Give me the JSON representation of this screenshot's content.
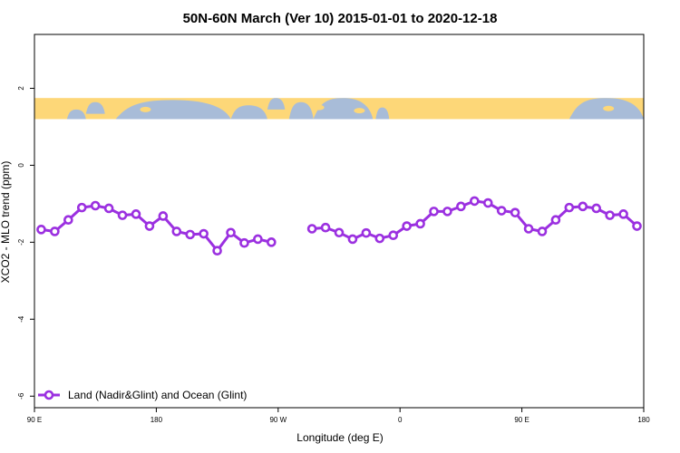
{
  "chart_data": {
    "type": "line",
    "title": "50N-60N March (Ver 10)   2015-01-01 to 2020-12-18",
    "xlabel": "Longitude (deg E)",
    "ylabel": "XCO2 - MLO trend (ppm)",
    "xlim": [
      90,
      540
    ],
    "ylim": [
      -6.3,
      3.4
    ],
    "x_ticks": [
      {
        "value": 90,
        "label": "90 E"
      },
      {
        "value": 180,
        "label": "180"
      },
      {
        "value": 270,
        "label": "90 W"
      },
      {
        "value": 360,
        "label": "0"
      },
      {
        "value": 450,
        "label": "90 E"
      },
      {
        "value": 540,
        "label": "180"
      }
    ],
    "y_ticks": [
      {
        "value": -6,
        "label": "-6"
      },
      {
        "value": -4,
        "label": "-4"
      },
      {
        "value": -2,
        "label": "-2"
      },
      {
        "value": 0,
        "label": "0"
      },
      {
        "value": 2,
        "label": "2"
      }
    ],
    "map_band": {
      "y_min": 1.2,
      "y_max": 1.75,
      "land_color": "#fdd778",
      "ocean_color": "#a8bcd8"
    },
    "grid": false,
    "legend_position": "bottom-left",
    "series": [
      {
        "name": "Land (Nadir&Glint) and Ocean (Glint)",
        "color": "#9b30e0",
        "points": [
          [
            95,
            -1.67
          ],
          [
            105,
            -1.72
          ],
          [
            115,
            -1.42
          ],
          [
            125,
            -1.1
          ],
          [
            135,
            -1.05
          ],
          [
            145,
            -1.12
          ],
          [
            155,
            -1.3
          ],
          [
            165,
            -1.27
          ],
          [
            175,
            -1.58
          ],
          [
            185,
            -1.32
          ],
          [
            195,
            -1.72
          ],
          [
            205,
            -1.8
          ],
          [
            215,
            -1.78
          ],
          [
            225,
            -2.22
          ],
          [
            235,
            -1.75
          ],
          [
            245,
            -2.02
          ],
          [
            255,
            -1.92
          ],
          [
            265,
            -2.0
          ]
        ]
      },
      {
        "name": "",
        "color": "#9b30e0",
        "points": [
          [
            295,
            -1.65
          ],
          [
            305,
            -1.62
          ],
          [
            315,
            -1.75
          ],
          [
            325,
            -1.92
          ],
          [
            335,
            -1.76
          ],
          [
            345,
            -1.9
          ],
          [
            355,
            -1.82
          ],
          [
            365,
            -1.58
          ],
          [
            375,
            -1.52
          ],
          [
            385,
            -1.2
          ],
          [
            395,
            -1.2
          ],
          [
            405,
            -1.07
          ],
          [
            415,
            -0.93
          ],
          [
            425,
            -0.98
          ],
          [
            435,
            -1.18
          ],
          [
            445,
            -1.23
          ],
          [
            455,
            -1.65
          ],
          [
            465,
            -1.72
          ],
          [
            475,
            -1.42
          ],
          [
            485,
            -1.1
          ],
          [
            495,
            -1.07
          ],
          [
            505,
            -1.12
          ],
          [
            515,
            -1.3
          ],
          [
            525,
            -1.27
          ],
          [
            535,
            -1.58
          ]
        ]
      }
    ]
  }
}
